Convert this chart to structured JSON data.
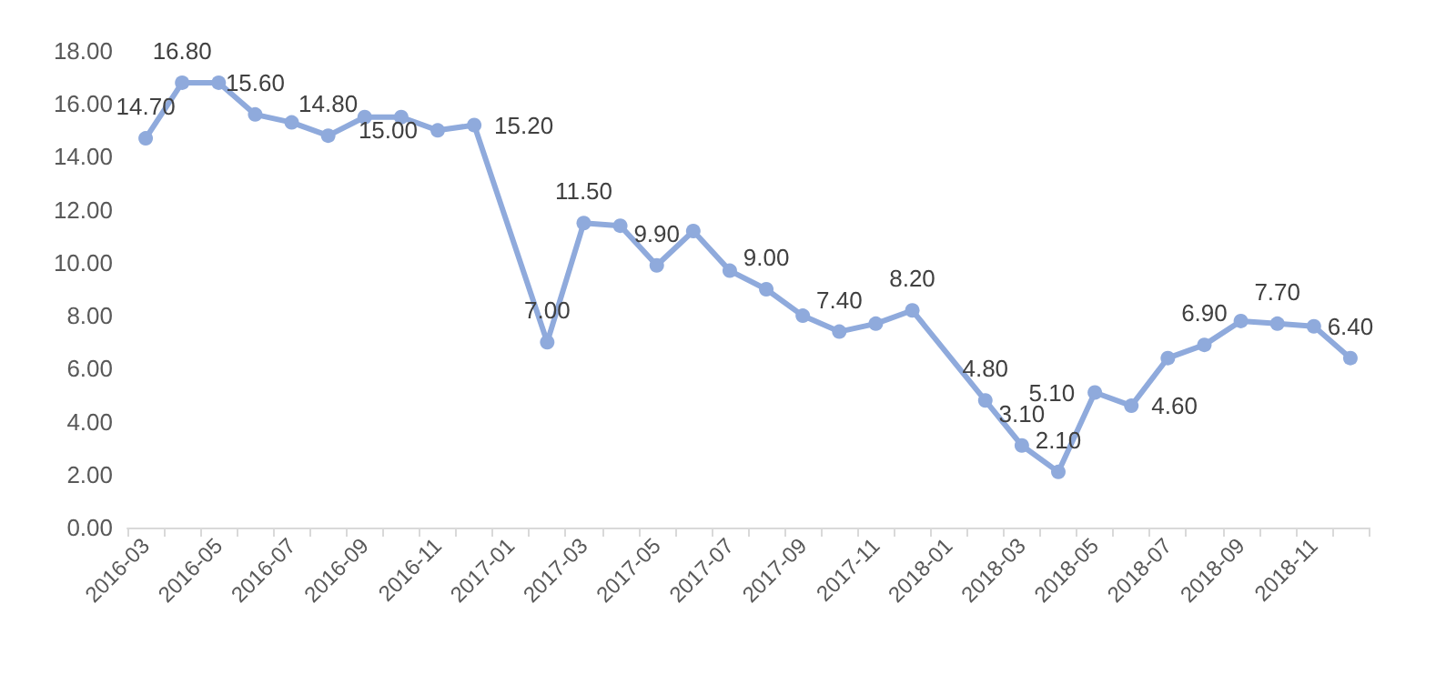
{
  "chart_data": {
    "type": "line",
    "categories": [
      "2016-03",
      null,
      "2016-05",
      null,
      "2016-07",
      null,
      "2016-09",
      null,
      "2016-11",
      null,
      "2017-01",
      null,
      "2017-03",
      null,
      "2017-05",
      null,
      "2017-07",
      null,
      "2017-09",
      null,
      "2017-11",
      null,
      "2018-01",
      null,
      "2018-03",
      null,
      "2018-05",
      null,
      "2018-07",
      null,
      "2018-09",
      null,
      "2018-11",
      null
    ],
    "series": [
      {
        "color": "#8faadc",
        "values": [
          14.7,
          16.8,
          16.8,
          15.6,
          15.3,
          14.8,
          15.5,
          15.5,
          15.0,
          15.2,
          null,
          7.0,
          11.5,
          11.4,
          9.9,
          11.2,
          9.7,
          9.0,
          8.0,
          7.4,
          7.7,
          8.2,
          null,
          4.8,
          3.1,
          2.1,
          5.1,
          4.6,
          6.4,
          6.9,
          7.8,
          7.7,
          7.6,
          6.4
        ],
        "value_labels": [
          "14.70",
          "16.80",
          null,
          "15.60",
          null,
          "14.80",
          null,
          null,
          "15.00",
          "15.20",
          null,
          "7.00",
          "11.50",
          null,
          "9.90",
          null,
          null,
          "9.00",
          null,
          "7.40",
          null,
          "8.20",
          null,
          "4.80",
          "3.10",
          "2.10",
          "5.10",
          "4.60",
          null,
          "6.90",
          null,
          "7.70",
          null,
          "6.40"
        ]
      }
    ],
    "ylim": [
      0,
      18
    ],
    "yticks": [
      {
        "value": 0,
        "label": "0.00"
      },
      {
        "value": 2,
        "label": "2.00"
      },
      {
        "value": 4,
        "label": "4.00"
      },
      {
        "value": 6,
        "label": "6.00"
      },
      {
        "value": 8,
        "label": "8.00"
      },
      {
        "value": 10,
        "label": "10.00"
      },
      {
        "value": 12,
        "label": "12.00"
      },
      {
        "value": 14,
        "label": "14.00"
      },
      {
        "value": 16,
        "label": "16.00"
      },
      {
        "value": 18,
        "label": "18.00"
      }
    ],
    "grid": false,
    "marker": "circle",
    "line_style": "solid"
  }
}
